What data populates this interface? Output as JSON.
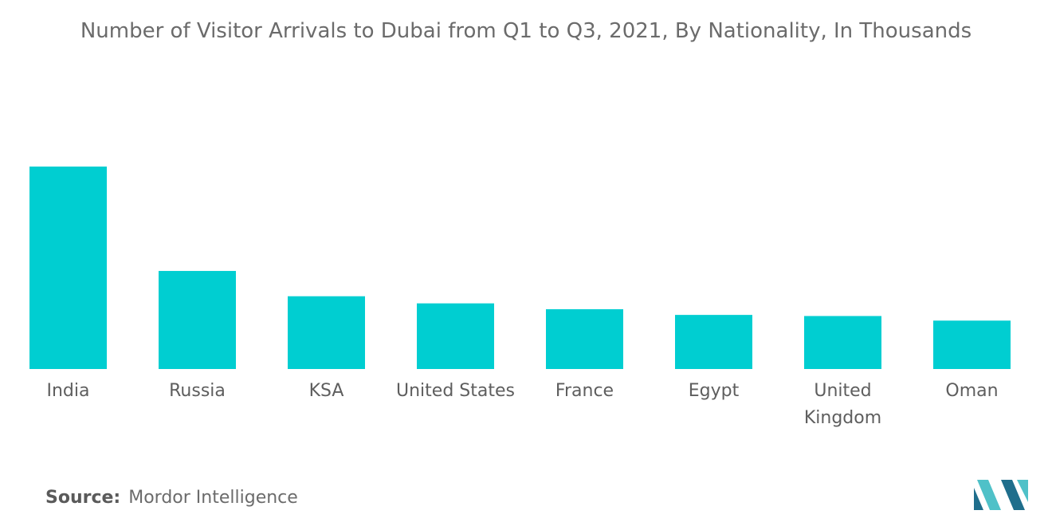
{
  "chart_data": {
    "type": "bar",
    "title": "Number of Visitor Arrivals to Dubai from Q1 to Q3, 2021, By Nationality, In Thousands",
    "categories": [
      "India",
      "Russia",
      "KSA",
      "United States",
      "France",
      "Egypt",
      "United Kingdom",
      "Oman"
    ],
    "category_lines": [
      [
        "India"
      ],
      [
        "Russia"
      ],
      [
        "KSA"
      ],
      [
        "United States"
      ],
      [
        "France"
      ],
      [
        "Egypt"
      ],
      [
        "United",
        "Kingdom"
      ],
      [
        "Oman"
      ]
    ],
    "values": [
      1280,
      620,
      460,
      415,
      378,
      342,
      335,
      306
    ],
    "ylim": [
      0,
      1300
    ],
    "xlabel": "",
    "ylabel": "",
    "grid": false,
    "bar_color": "#00ced1"
  },
  "source": {
    "label": "Source:",
    "text": "Mordor Intelligence"
  },
  "logo": {
    "icon": "mordor-intelligence-logo",
    "colors": [
      "#1f6e8c",
      "#4fc1c8"
    ]
  }
}
